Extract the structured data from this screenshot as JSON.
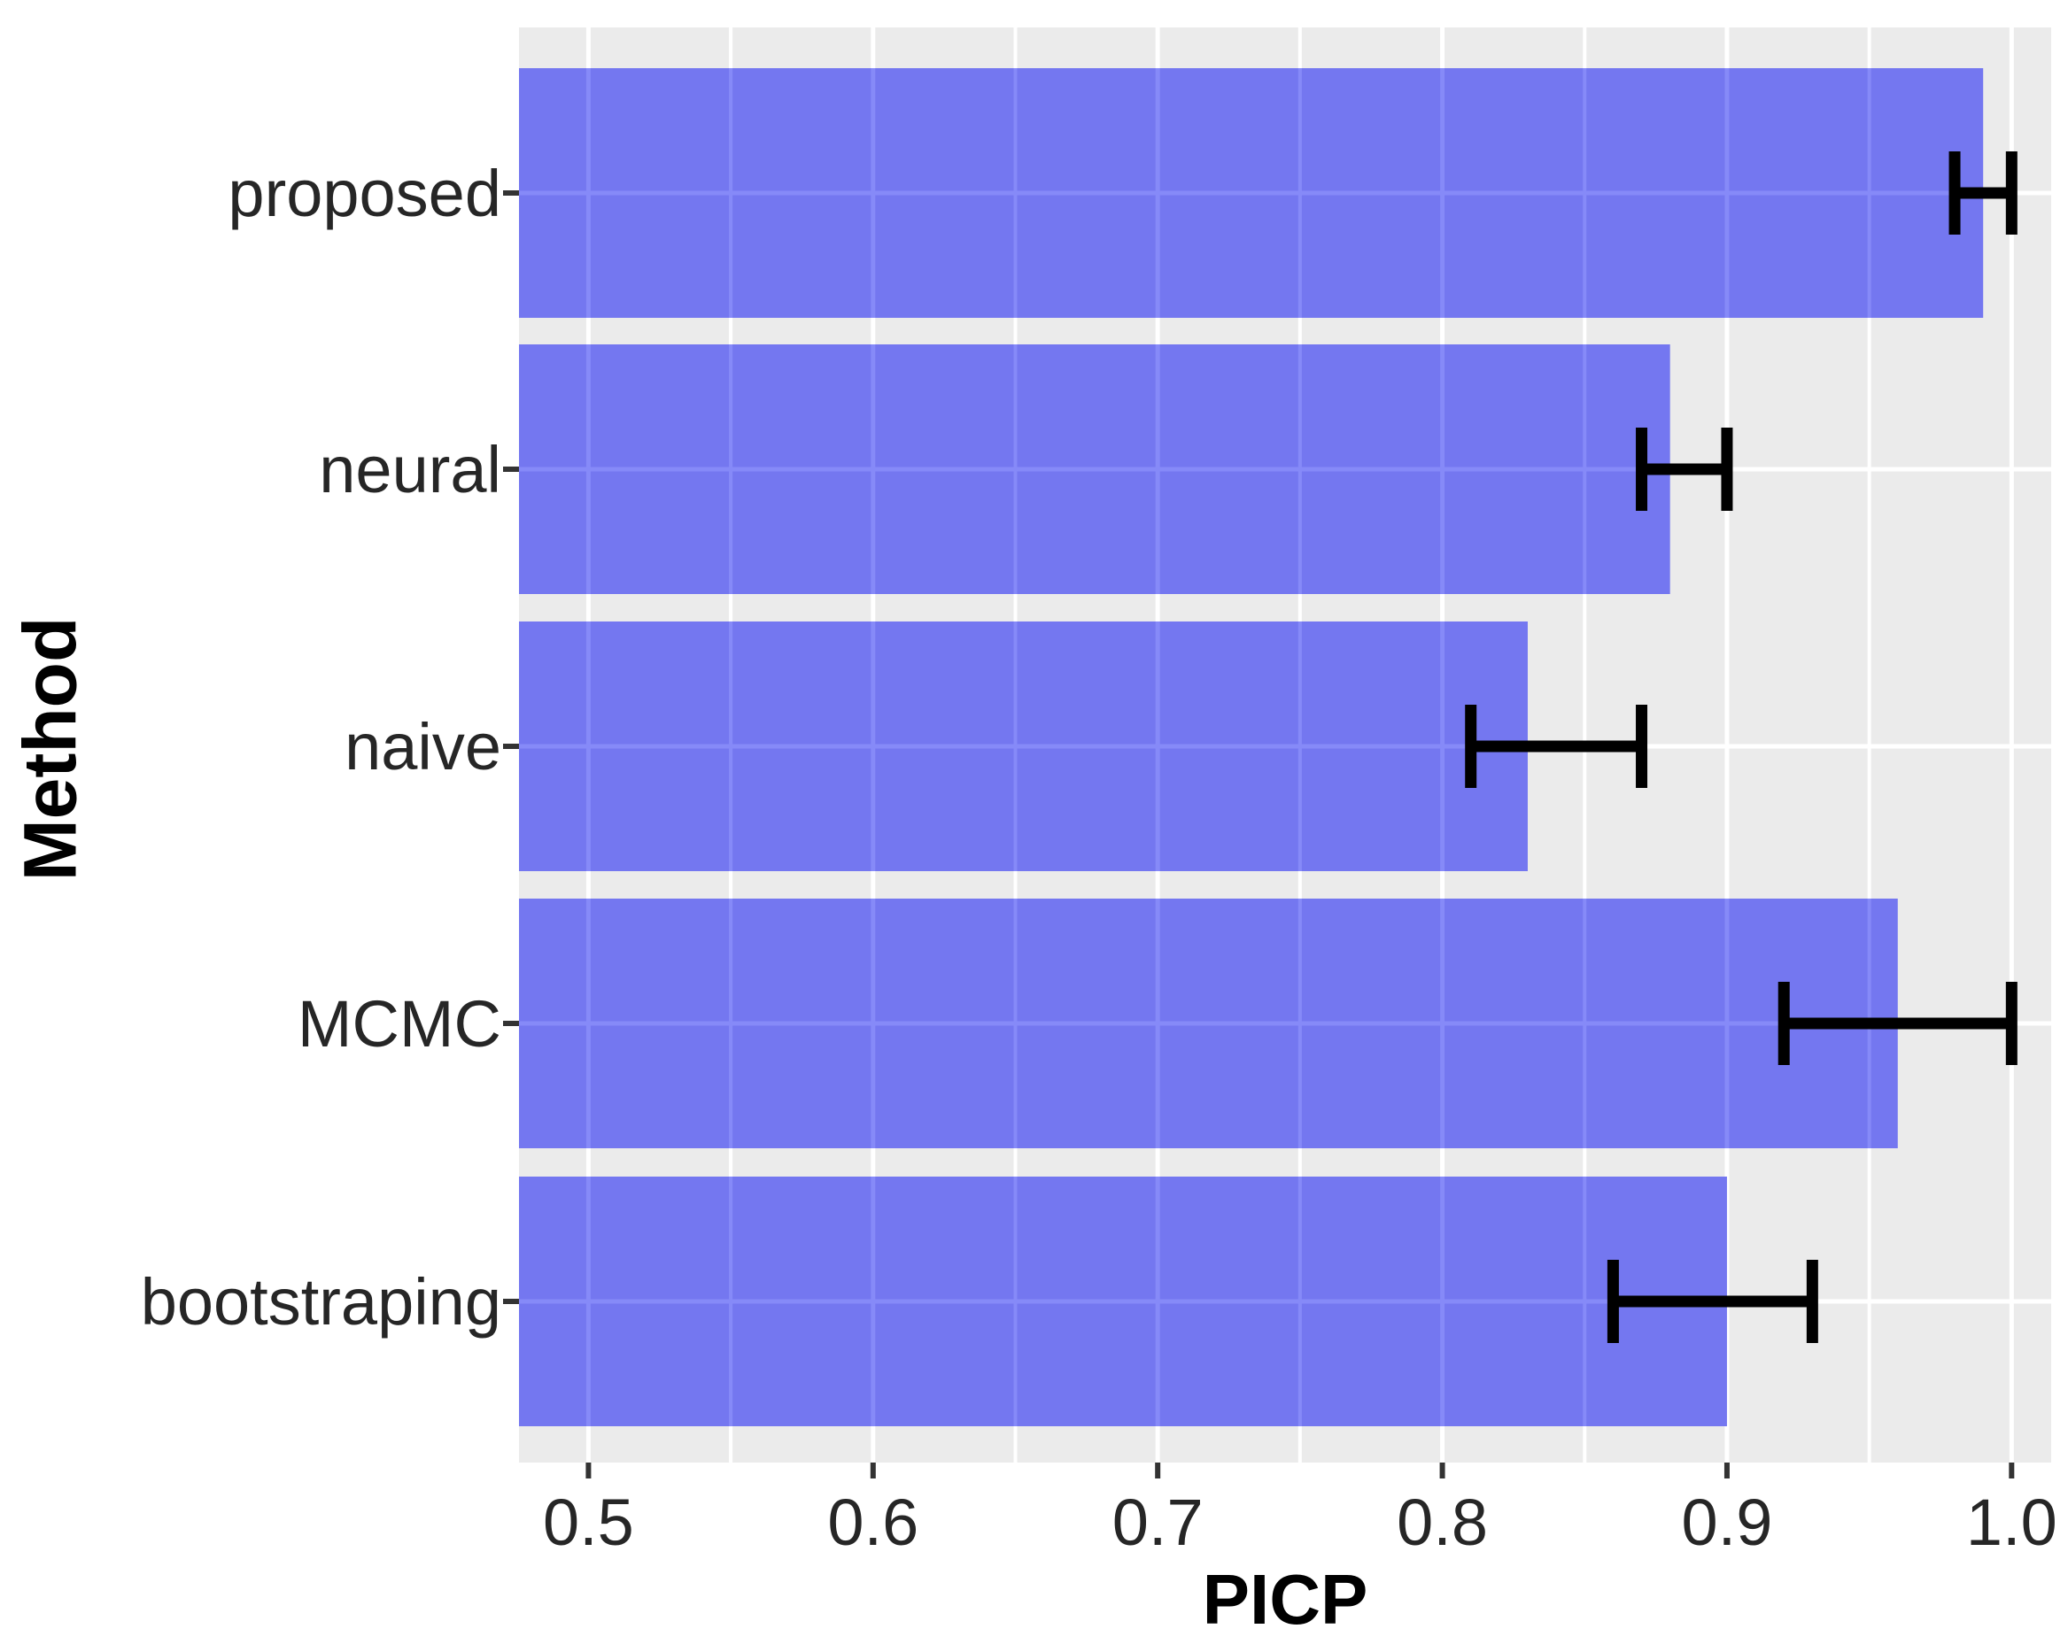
{
  "figure": {
    "background": "#FFFFFF"
  },
  "chart_data": {
    "type": "bar",
    "orientation": "horizontal",
    "title": "",
    "xlabel": "PICP",
    "ylabel": "Method",
    "categories": [
      "proposed",
      "neural",
      "naive",
      "MCMC",
      "bootstraping"
    ],
    "values": [
      0.99,
      0.88,
      0.83,
      0.96,
      0.9
    ],
    "error_low": [
      0.98,
      0.87,
      0.81,
      0.92,
      0.86
    ],
    "error_high": [
      1.0,
      0.9,
      0.87,
      1.0,
      0.93
    ],
    "x_ticks": [
      0.5,
      0.6,
      0.7,
      0.8,
      0.9,
      1.0
    ],
    "x_tick_labels": [
      "0.5",
      "0.6",
      "0.7",
      "0.8",
      "0.9",
      "1.0"
    ],
    "x_minor_ticks": [
      0.55,
      0.65,
      0.75,
      0.85,
      0.95
    ],
    "xlim": [
      0.4756,
      1.0139
    ],
    "bar_width_fraction": 0.9,
    "grid": true,
    "legend": false,
    "colors": {
      "bar_fill": "#7477F0",
      "bar_grid_overlay": "#868AF8",
      "panel_background": "#EBEBEB",
      "grid_major": "#FFFFFF",
      "grid_minor": "#FFFFFF",
      "error_bar": "#000000",
      "axis_tick": "#333333",
      "tick_label": "#262626",
      "axis_title": "#000000",
      "background": "#FFFFFF"
    }
  }
}
